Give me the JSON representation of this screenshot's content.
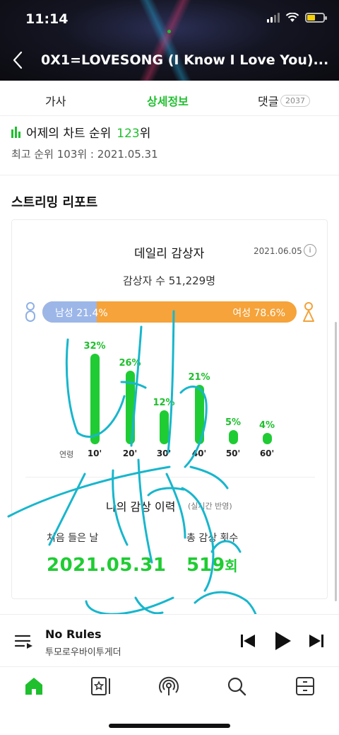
{
  "status_bar": {
    "time": "11:14"
  },
  "header": {
    "title": "0X1=LOVESONG (I Know I Love You)..."
  },
  "tabs": [
    {
      "label": "가사"
    },
    {
      "label": "상세정보"
    },
    {
      "label": "댓글",
      "badge": "2037"
    }
  ],
  "chart_rank": {
    "label": "어제의 차트 순위",
    "rank": "123",
    "suffix": "위",
    "best": "최고 순위 103위 : 2021.05.31"
  },
  "streaming": {
    "section_title": "스트리밍 리포트",
    "card_title": "데일리 감상자",
    "date": "2021.06.05",
    "listener_count": "감상자 수 51,229명",
    "male_label": "남성 21.4%",
    "female_label": "여성 78.6%",
    "male_share": 0.214,
    "age_caption": "연령",
    "ages": [
      {
        "label": "10'",
        "pct": "32%",
        "value": 32
      },
      {
        "label": "20'",
        "pct": "26%",
        "value": 26
      },
      {
        "label": "30'",
        "pct": "12%",
        "value": 12
      },
      {
        "label": "40'",
        "pct": "21%",
        "value": 21
      },
      {
        "label": "50'",
        "pct": "5%",
        "value": 5
      },
      {
        "label": "60'",
        "pct": "4%",
        "value": 4
      }
    ]
  },
  "history": {
    "title": "나의 감상 이력",
    "note": "(실시간 반영)",
    "first_label": "처음 들은 날",
    "first_value": "2021.05.31",
    "count_label": "총 감상 횟수",
    "count_value": "519",
    "count_unit": "회"
  },
  "player": {
    "title": "No Rules",
    "artist": "투모로우바이투게더"
  },
  "colors": {
    "accent": "#1fbf2e",
    "male": "#9cb6e8",
    "female": "#f5a33a",
    "scribble": "#18b6cc"
  },
  "icons": [
    "back-icon",
    "playlist-icon",
    "prev-icon",
    "play-icon",
    "next-icon",
    "home-icon",
    "library-icon",
    "podcast-icon",
    "search-icon",
    "storage-icon"
  ]
}
